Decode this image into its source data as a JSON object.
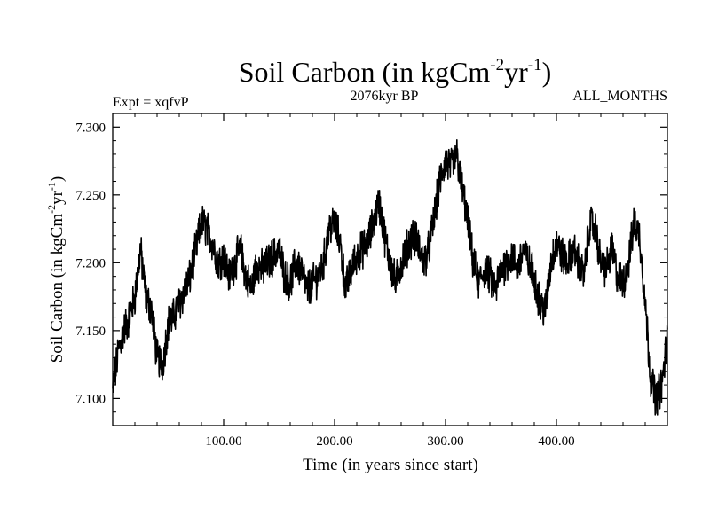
{
  "chart_data": {
    "type": "line",
    "title": {
      "main": "Soil Carbon (in kgCm",
      "sup1": "-2",
      "mid": "yr",
      "sup2": "-1",
      "end": ")"
    },
    "subtitle_left": "Expt = xqfvP",
    "subtitle_center": "2076kyr BP",
    "subtitle_right": "ALL_MONTHS",
    "xlabel": "Time (in years since start)",
    "ylabel": {
      "main": "Soil Carbon (in kgCm",
      "sup1": "-2",
      "mid": "yr",
      "sup2": "-1",
      "end": ")"
    },
    "xlim": [
      0,
      500
    ],
    "ylim": [
      7.08,
      7.31
    ],
    "xticks": [
      100,
      200,
      300,
      400
    ],
    "xtick_labels": [
      "100.00",
      "200.00",
      "300.00",
      "400.00"
    ],
    "yticks": [
      7.1,
      7.15,
      7.2,
      7.25,
      7.3
    ],
    "ytick_labels": [
      "7.100",
      "7.150",
      "7.200",
      "7.250",
      "7.300"
    ],
    "series": [
      {
        "name": "Soil Carbon",
        "color": "#000000",
        "x": [
          0,
          5,
          10,
          15,
          20,
          25,
          30,
          35,
          40,
          45,
          50,
          55,
          60,
          65,
          70,
          75,
          80,
          85,
          90,
          95,
          100,
          105,
          110,
          115,
          120,
          125,
          130,
          135,
          140,
          145,
          150,
          155,
          160,
          165,
          170,
          175,
          180,
          185,
          190,
          195,
          200,
          205,
          210,
          215,
          220,
          225,
          230,
          235,
          240,
          245,
          250,
          255,
          260,
          265,
          270,
          275,
          280,
          285,
          290,
          295,
          300,
          305,
          310,
          315,
          320,
          325,
          330,
          335,
          340,
          345,
          350,
          355,
          360,
          365,
          370,
          375,
          380,
          385,
          390,
          395,
          400,
          405,
          410,
          415,
          420,
          425,
          430,
          435,
          440,
          445,
          450,
          455,
          460,
          465,
          470,
          475,
          480,
          485,
          490,
          495,
          500
        ],
        "y": [
          7.105,
          7.135,
          7.15,
          7.16,
          7.175,
          7.21,
          7.175,
          7.165,
          7.13,
          7.125,
          7.155,
          7.16,
          7.17,
          7.18,
          7.19,
          7.21,
          7.23,
          7.225,
          7.215,
          7.2,
          7.205,
          7.19,
          7.2,
          7.21,
          7.19,
          7.18,
          7.2,
          7.195,
          7.2,
          7.205,
          7.21,
          7.19,
          7.185,
          7.2,
          7.195,
          7.18,
          7.185,
          7.19,
          7.2,
          7.225,
          7.23,
          7.215,
          7.18,
          7.195,
          7.205,
          7.21,
          7.215,
          7.23,
          7.245,
          7.22,
          7.2,
          7.185,
          7.2,
          7.21,
          7.22,
          7.215,
          7.2,
          7.21,
          7.235,
          7.26,
          7.275,
          7.27,
          7.28,
          7.255,
          7.23,
          7.2,
          7.185,
          7.195,
          7.19,
          7.18,
          7.195,
          7.2,
          7.205,
          7.195,
          7.21,
          7.2,
          7.19,
          7.17,
          7.165,
          7.2,
          7.215,
          7.205,
          7.2,
          7.21,
          7.2,
          7.19,
          7.23,
          7.225,
          7.2,
          7.195,
          7.21,
          7.19,
          7.185,
          7.2,
          7.23,
          7.22,
          7.17,
          7.115,
          7.1,
          7.11,
          7.145
        ]
      }
    ]
  }
}
